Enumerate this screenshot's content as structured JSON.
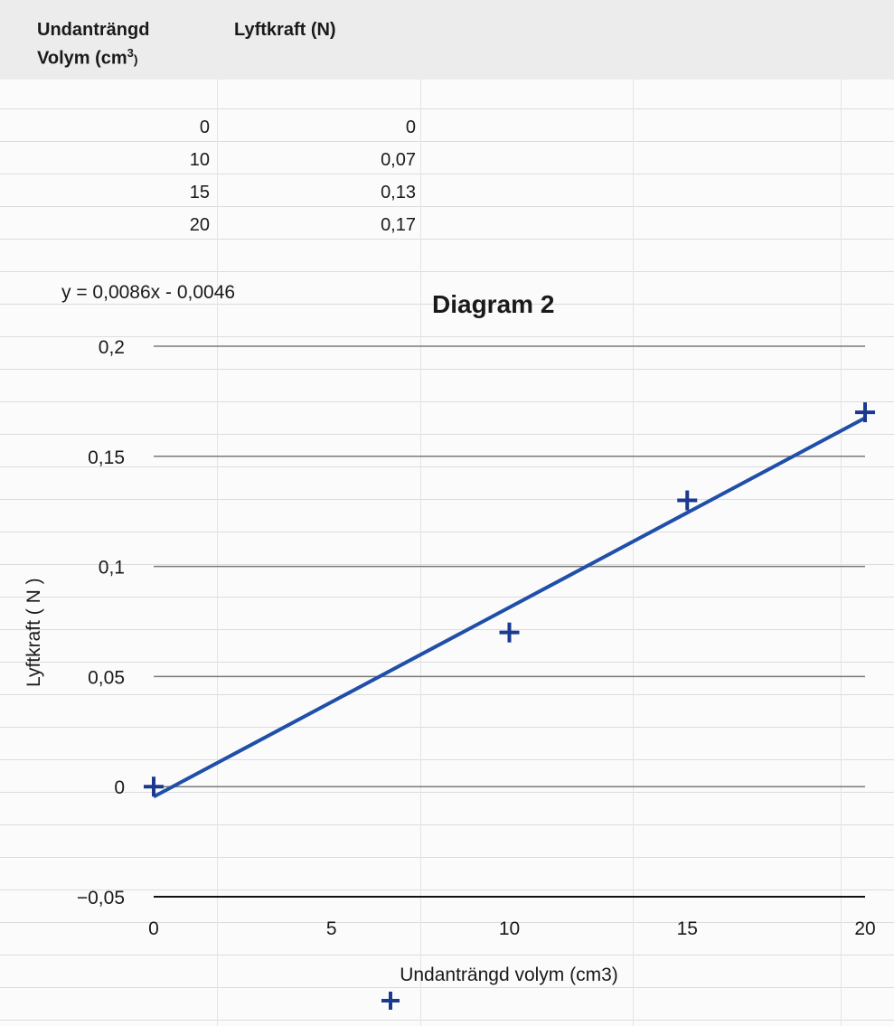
{
  "table": {
    "headers": [
      "Undanträngd Volym (cm³)",
      "Lyftkraft (N)"
    ],
    "header_volume_line1": "Undanträngd",
    "header_volume_line2": "Volym (cm",
    "header_volume_sup": "3",
    "header_volume_close": ")",
    "header_force": "Lyftkraft (N)",
    "rows": [
      {
        "volume": "0",
        "force": "0"
      },
      {
        "volume": "10",
        "force": "0,07"
      },
      {
        "volume": "15",
        "force": "0,13"
      },
      {
        "volume": "20",
        "force": "0,17"
      }
    ]
  },
  "chart_data": {
    "type": "scatter",
    "title": "Diagram 2",
    "trendline_label": "y = 0,0086x - 0,0046",
    "trendline": {
      "slope": 0.0086,
      "intercept": -0.0046,
      "color": "#1f4fa8"
    },
    "xlabel": "Undanträngd volym (cm3)",
    "ylabel": "Lyftkraft ( N )",
    "xlim": [
      0,
      20
    ],
    "ylim": [
      -0.05,
      0.2
    ],
    "x_ticks": [
      "0",
      "5",
      "10",
      "15",
      "20"
    ],
    "y_ticks": [
      "0,2",
      "0,15",
      "0,1",
      "0,05",
      "0",
      "−0,05"
    ],
    "grid": true,
    "marker": "+",
    "marker_color": "#1b3a8f",
    "series": [
      {
        "x": [
          0,
          10,
          15,
          20
        ],
        "y": [
          0,
          0.07,
          0.13,
          0.17
        ]
      }
    ],
    "legend_marker": "+"
  }
}
